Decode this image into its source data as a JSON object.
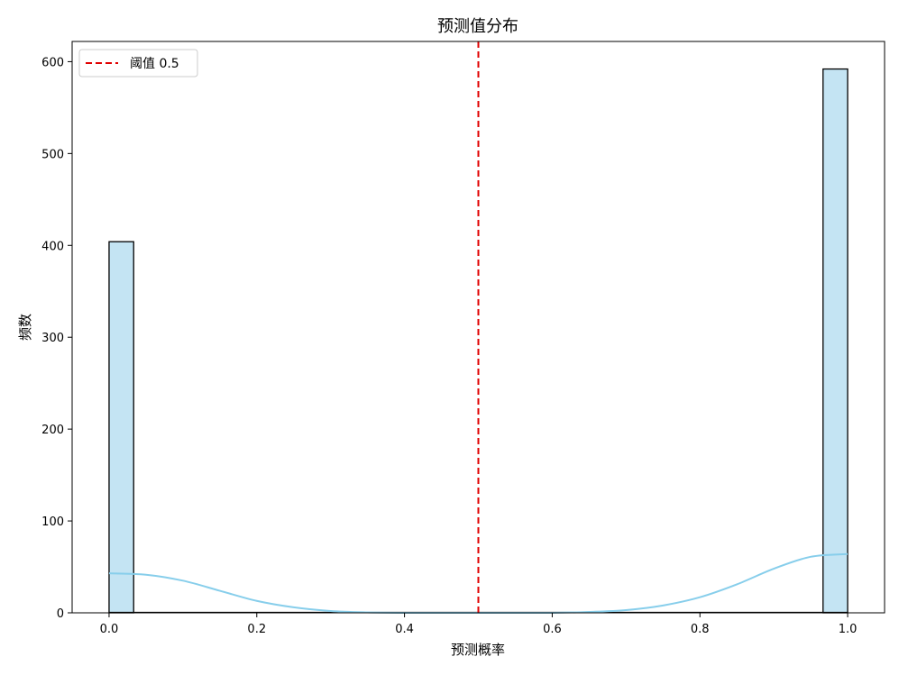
{
  "chart_data": {
    "type": "bar",
    "title": "预测值分布",
    "xlabel": "预测概率",
    "ylabel": "频数",
    "xlim": [
      -0.05,
      1.05
    ],
    "ylim": [
      0,
      622
    ],
    "xticks": [
      0.0,
      0.2,
      0.4,
      0.6,
      0.8,
      1.0
    ],
    "xtick_labels": [
      "0.0",
      "0.2",
      "0.4",
      "0.6",
      "0.8",
      "1.0"
    ],
    "yticks": [
      0,
      100,
      200,
      300,
      400,
      500,
      600
    ],
    "ytick_labels": [
      "0",
      "100",
      "200",
      "300",
      "400",
      "500",
      "600"
    ],
    "bins": 30,
    "bin_range": [
      0,
      1
    ],
    "histogram": [
      {
        "x0": 0.0,
        "x1": 0.0333,
        "count": 404
      },
      {
        "x0": 0.9667,
        "x1": 1.0,
        "count": 592
      }
    ],
    "kde": {
      "x": [
        0.0,
        0.05,
        0.1,
        0.15,
        0.2,
        0.25,
        0.3,
        0.35,
        0.4,
        0.45,
        0.5,
        0.55,
        0.6,
        0.65,
        0.7,
        0.75,
        0.8,
        0.85,
        0.9,
        0.95,
        1.0
      ],
      "y": [
        43,
        41.5,
        35,
        24,
        13,
        6,
        2,
        0.5,
        0,
        0,
        0,
        0,
        0,
        1,
        3,
        8,
        17,
        31,
        48,
        61,
        64
      ]
    },
    "threshold": {
      "value": 0.5,
      "label": "阈值 0.5"
    },
    "legend": {
      "position": "top-left"
    },
    "grid": false,
    "colors": {
      "bar_fill": "#c4e4f3",
      "bar_edge": "#000000",
      "kde_line": "#87ceeb",
      "threshold_line": "#e00000"
    }
  }
}
